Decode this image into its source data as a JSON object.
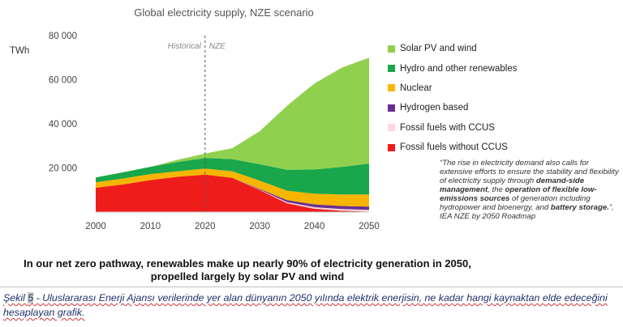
{
  "chart_data": {
    "type": "area",
    "stacked": true,
    "title": "Global electricity supply, NZE scenario",
    "ylabel": "TWh",
    "xlabel": "",
    "x": [
      2000,
      2005,
      2010,
      2015,
      2020,
      2025,
      2030,
      2035,
      2040,
      2045,
      2050
    ],
    "xticks": [
      "2000",
      "2010",
      "2020",
      "2030",
      "2040",
      "2050"
    ],
    "yticks": [
      "20 000",
      "40 000",
      "60 000",
      "80 000"
    ],
    "xlim": [
      2000,
      2050
    ],
    "ylim": [
      0,
      80000
    ],
    "grid": false,
    "legend_position": "right",
    "divider": {
      "x": 2020,
      "left_label": "Historical",
      "right_label": "NZE"
    },
    "series": [
      {
        "name": "Fossil fuels without CCUS",
        "color": "#ef1c1c",
        "values": [
          11000,
          12500,
          14500,
          16000,
          17000,
          15500,
          10000,
          4000,
          1500,
          600,
          200
        ]
      },
      {
        "name": "Fossil fuels with CCUS",
        "color": "#ffd6de",
        "values": [
          0,
          0,
          0,
          0,
          0,
          0,
          200,
          500,
          700,
          750,
          800
        ]
      },
      {
        "name": "Hydrogen based",
        "color": "#6b2f8f",
        "values": [
          0,
          0,
          0,
          0,
          0,
          0,
          300,
          900,
          1300,
          1400,
          1500
        ]
      },
      {
        "name": "Nuclear",
        "color": "#f7b500",
        "values": [
          2500,
          2700,
          2700,
          2500,
          2700,
          3000,
          3700,
          4300,
          4800,
          5200,
          5500
        ]
      },
      {
        "name": "Hydro and other renewables",
        "color": "#1aa64b",
        "values": [
          2200,
          2800,
          3300,
          4200,
          4800,
          5500,
          7500,
          9500,
          11000,
          12500,
          14000
        ]
      },
      {
        "name": "Solar PV and wind",
        "color": "#8fd14f",
        "values": [
          0,
          0,
          0,
          1000,
          2000,
          5000,
          15000,
          29000,
          39000,
          45000,
          48000
        ]
      }
    ]
  },
  "quote": {
    "intro": "“The rise in electricity demand also calls for extensive efforts to ensure the stability and flexibility of electricity supply through ",
    "b1": "demand-side management",
    "mid1": ", the ",
    "b2": "operation of flexible low-emissions sources",
    "mid2": " of generation including hydropower and bioenergy, and ",
    "b3": "battery storage.",
    "tail": "”, IEA NZE by 2050 Roadmap"
  },
  "headline": {
    "line1": "In our net zero pathway, renewables make up nearly 90% of electricity generation in 2050,",
    "line2": "propelled largely by solar PV and wind"
  },
  "caption": {
    "prefix": "Şekil ",
    "number": "5",
    "text": " - Uluslararası Enerji Ajansı verilerinde  yer alan dünyanın  2050 yılında  elektrik enerjisin,  ne kadar hangi kaynaktan elde edeceğini hesaplayan grafik."
  }
}
